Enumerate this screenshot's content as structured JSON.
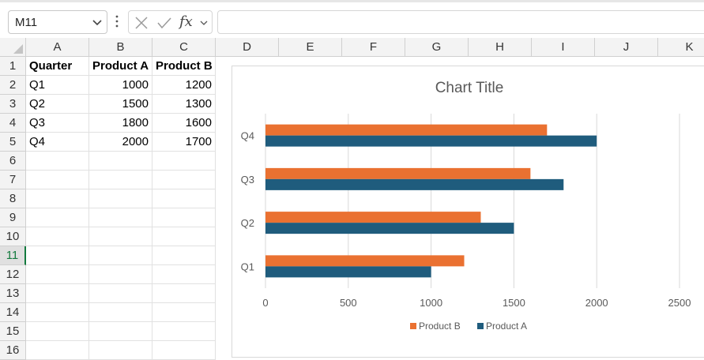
{
  "formula_bar": {
    "name_box": "M11",
    "fx_label": "fx",
    "formula": ""
  },
  "columns": [
    "A",
    "B",
    "C",
    "D",
    "E",
    "F",
    "G",
    "H",
    "I",
    "J",
    "K"
  ],
  "rows": [
    "1",
    "2",
    "3",
    "4",
    "5",
    "6",
    "7",
    "8",
    "9",
    "10",
    "11",
    "12",
    "13",
    "14",
    "15",
    "16"
  ],
  "selected_row": "11",
  "sheet": {
    "headers": [
      "Quarter",
      "Product A",
      "Product B"
    ],
    "data": [
      [
        "Q1",
        "1000",
        "1200"
      ],
      [
        "Q2",
        "1500",
        "1300"
      ],
      [
        "Q3",
        "1800",
        "1600"
      ],
      [
        "Q4",
        "2000",
        "1700"
      ]
    ]
  },
  "colors": {
    "product_a": "#1f5c7d",
    "product_b": "#ea7131",
    "gridline": "#d9d9d9",
    "axis_text": "#595959"
  },
  "chart_data": {
    "type": "bar",
    "orientation": "horizontal",
    "title": "Chart Title",
    "categories": [
      "Q1",
      "Q2",
      "Q3",
      "Q4"
    ],
    "series": [
      {
        "name": "Product A",
        "values": [
          1000,
          1500,
          1800,
          2000
        ]
      },
      {
        "name": "Product B",
        "values": [
          1200,
          1300,
          1600,
          1700
        ]
      }
    ],
    "xlim": [
      0,
      2500
    ],
    "xticks": [
      0,
      500,
      1000,
      1500,
      2000,
      2500
    ],
    "xlabel": "",
    "ylabel": "",
    "grid": "vertical",
    "legend": "bottom",
    "legend_order": [
      "Product B",
      "Product A"
    ]
  }
}
